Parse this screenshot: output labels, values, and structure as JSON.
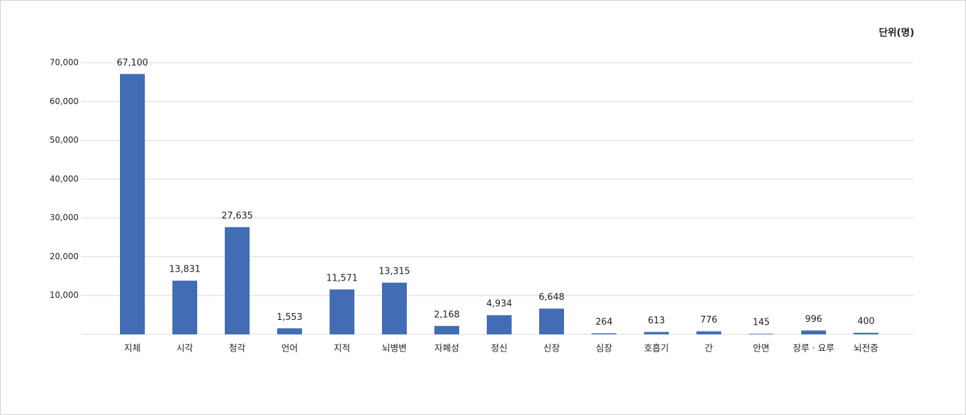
{
  "chart_data": {
    "type": "bar",
    "unit_label": "단위(명)",
    "categories": [
      "지체",
      "시각",
      "청각",
      "언어",
      "지적",
      "뇌병변",
      "자폐성",
      "정신",
      "신장",
      "심장",
      "호흡기",
      "간",
      "안면",
      "장루 · 요루",
      "뇌전증"
    ],
    "values": [
      67100,
      13831,
      27635,
      1553,
      11571,
      13315,
      2168,
      4934,
      6648,
      264,
      613,
      776,
      145,
      996,
      400
    ],
    "value_labels": [
      "67,100",
      "13,831",
      "27,635",
      "1,553",
      "11,571",
      "13,315",
      "2,168",
      "4,934",
      "6,648",
      "264",
      "613",
      "776",
      "145",
      "996",
      "400"
    ],
    "color": "#426db5",
    "ylim": [
      0,
      70000
    ],
    "yticks": [
      {
        "value": 10000,
        "label": "10,000"
      },
      {
        "value": 20000,
        "label": "20,000"
      },
      {
        "value": 30000,
        "label": "30,000"
      },
      {
        "value": 40000,
        "label": "40,000"
      },
      {
        "value": 50000,
        "label": "50,000"
      },
      {
        "value": 60000,
        "label": "60,000"
      },
      {
        "value": 70000,
        "label": "70,000"
      }
    ],
    "grid": true
  }
}
